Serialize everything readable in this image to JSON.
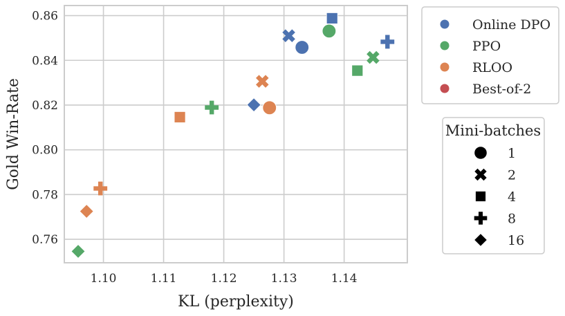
{
  "chart_data": {
    "type": "scatter",
    "xlabel": "KL (perplexity)",
    "ylabel": "Gold Win-Rate",
    "xlim": [
      1.0935,
      1.1505
    ],
    "ylim": [
      0.7495,
      0.8645
    ],
    "xticks": [
      1.1,
      1.11,
      1.12,
      1.13,
      1.14
    ],
    "xtick_labels": [
      "1.10",
      "1.11",
      "1.12",
      "1.13",
      "1.14"
    ],
    "yticks": [
      0.76,
      0.78,
      0.8,
      0.82,
      0.84,
      0.86
    ],
    "ytick_labels": [
      "0.76",
      "0.78",
      "0.80",
      "0.82",
      "0.84",
      "0.86"
    ],
    "grid": true,
    "legend_methods": {
      "title": "",
      "placement": "outside-top-right",
      "entries": [
        {
          "label": "Online DPO",
          "color": "#4C72B0"
        },
        {
          "label": "PPO",
          "color": "#55A868"
        },
        {
          "label": "RLOO",
          "color": "#DD8452"
        },
        {
          "label": "Best-of-2",
          "color": "#C44E52"
        }
      ]
    },
    "legend_minibatches": {
      "title": "Mini-batches",
      "placement": "outside-right",
      "entries": [
        {
          "label": "1",
          "marker": "circle"
        },
        {
          "label": "2",
          "marker": "x"
        },
        {
          "label": "4",
          "marker": "square"
        },
        {
          "label": "8",
          "marker": "plus"
        },
        {
          "label": "16",
          "marker": "diamond"
        }
      ]
    },
    "series": [
      {
        "name": "Online DPO",
        "color": "#4C72B0",
        "points": [
          {
            "x": 1.133,
            "y": 0.8458,
            "minibatch": "1"
          },
          {
            "x": 1.1308,
            "y": 0.851,
            "minibatch": "2"
          },
          {
            "x": 1.138,
            "y": 0.8588,
            "minibatch": "4"
          },
          {
            "x": 1.1472,
            "y": 0.8483,
            "minibatch": "8"
          },
          {
            "x": 1.125,
            "y": 0.8201,
            "minibatch": "16"
          }
        ]
      },
      {
        "name": "PPO",
        "color": "#55A868",
        "points": [
          {
            "x": 1.1375,
            "y": 0.8531,
            "minibatch": "1"
          },
          {
            "x": 1.1448,
            "y": 0.8413,
            "minibatch": "2"
          },
          {
            "x": 1.1422,
            "y": 0.8354,
            "minibatch": "4"
          },
          {
            "x": 1.118,
            "y": 0.8189,
            "minibatch": "8"
          },
          {
            "x": 1.0958,
            "y": 0.7546,
            "minibatch": "16"
          }
        ]
      },
      {
        "name": "RLOO",
        "color": "#DD8452",
        "points": [
          {
            "x": 1.1276,
            "y": 0.8188,
            "minibatch": "1"
          },
          {
            "x": 1.1264,
            "y": 0.8306,
            "minibatch": "2"
          },
          {
            "x": 1.1127,
            "y": 0.8146,
            "minibatch": "4"
          },
          {
            "x": 1.0995,
            "y": 0.7827,
            "minibatch": "8"
          },
          {
            "x": 1.0972,
            "y": 0.7725,
            "minibatch": "16"
          }
        ]
      },
      {
        "name": "Best-of-2",
        "color": "#C44E52",
        "points": []
      }
    ]
  }
}
